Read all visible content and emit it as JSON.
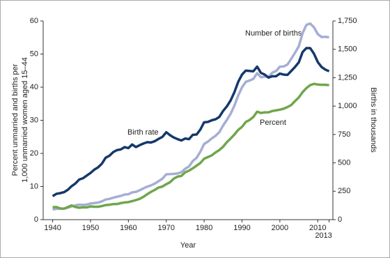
{
  "chart_data": {
    "type": "line",
    "x": [
      1940,
      1941,
      1942,
      1943,
      1944,
      1945,
      1946,
      1947,
      1948,
      1949,
      1950,
      1951,
      1952,
      1953,
      1954,
      1955,
      1956,
      1957,
      1958,
      1959,
      1960,
      1961,
      1962,
      1963,
      1964,
      1965,
      1966,
      1967,
      1968,
      1969,
      1970,
      1971,
      1972,
      1973,
      1974,
      1975,
      1976,
      1977,
      1978,
      1979,
      1980,
      1981,
      1982,
      1983,
      1984,
      1985,
      1986,
      1987,
      1988,
      1989,
      1990,
      1991,
      1992,
      1993,
      1994,
      1995,
      1996,
      1997,
      1998,
      1999,
      2000,
      2001,
      2002,
      2003,
      2004,
      2005,
      2006,
      2007,
      2008,
      2009,
      2010,
      2011,
      2012,
      2013
    ],
    "series": [
      {
        "name": "Number of births",
        "color": "#a5aed3",
        "axis": "y2",
        "values": [
          89,
          96,
          96,
          98,
          105,
          117,
          125,
          132,
          130,
          133,
          142,
          146,
          150,
          161,
          177,
          183,
          193,
          202,
          209,
          221,
          224,
          240,
          245,
          259,
          276,
          291,
          302,
          318,
          339,
          361,
          399,
          401,
          403,
          407,
          418,
          448,
          468,
          516,
          544,
          598,
          666,
          687,
          715,
          738,
          770,
          828,
          878,
          933,
          1005,
          1094,
          1165,
          1214,
          1225,
          1240,
          1290,
          1254,
          1260,
          1257,
          1294,
          1309,
          1347,
          1349,
          1366,
          1416,
          1470,
          1527,
          1642,
          1715,
          1727,
          1694,
          1634,
          1608,
          1610,
          1606
        ]
      },
      {
        "name": "Percent",
        "color": "#6fa64b",
        "values": [
          3.8,
          3.8,
          3.4,
          3.3,
          3.8,
          4.3,
          3.8,
          3.6,
          3.7,
          3.7,
          4.0,
          3.9,
          3.9,
          4.1,
          4.4,
          4.5,
          4.7,
          4.7,
          5.0,
          5.2,
          5.3,
          5.6,
          5.9,
          6.3,
          6.9,
          7.7,
          8.4,
          9.0,
          9.7,
          10.0,
          10.7,
          11.3,
          12.4,
          13.0,
          13.2,
          14.3,
          14.8,
          15.5,
          16.3,
          17.1,
          18.4,
          18.9,
          19.4,
          20.3,
          21.0,
          22.0,
          23.4,
          24.5,
          25.7,
          27.1,
          28.0,
          29.5,
          30.1,
          31.0,
          32.6,
          32.2,
          32.4,
          32.4,
          32.8,
          33.0,
          33.2,
          33.5,
          34.0,
          34.6,
          35.8,
          36.9,
          38.5,
          39.7,
          40.6,
          41.0,
          40.8,
          40.7,
          40.7,
          40.6
        ]
      },
      {
        "name": "Birth rate",
        "color": "#15386a",
        "values": [
          7.1,
          7.8,
          8.0,
          8.3,
          9.0,
          10.1,
          10.9,
          12.1,
          12.5,
          13.3,
          14.1,
          15.1,
          15.8,
          16.9,
          18.7,
          19.3,
          20.4,
          21.0,
          21.2,
          21.9,
          21.6,
          22.7,
          21.9,
          22.5,
          23.0,
          23.4,
          23.3,
          23.7,
          24.4,
          25.0,
          26.4,
          25.5,
          24.8,
          24.3,
          23.9,
          24.5,
          24.3,
          25.6,
          25.7,
          27.2,
          29.4,
          29.5,
          30.0,
          30.3,
          31.0,
          32.8,
          34.2,
          36.0,
          38.5,
          41.6,
          43.8,
          45.0,
          44.9,
          44.8,
          46.2,
          44.3,
          43.8,
          42.9,
          43.3,
          43.3,
          44.1,
          43.8,
          43.7,
          44.9,
          46.1,
          47.5,
          50.6,
          51.8,
          51.8,
          50.1,
          47.6,
          46.1,
          45.3,
          44.8
        ]
      }
    ],
    "xlim": [
      1937.5,
      2014
    ],
    "xticks": [
      1940,
      1950,
      1960,
      1970,
      1980,
      1990,
      2000,
      2010,
      2013
    ],
    "ylim": [
      0,
      60
    ],
    "yticks": [
      0,
      10,
      20,
      30,
      40,
      50,
      60
    ],
    "y2lim": [
      0,
      1750
    ],
    "y2ticks": [
      0,
      250,
      500,
      750,
      {
        "value": 1000,
        "label": "1,000"
      },
      {
        "value": 1250,
        "label": "1,250"
      },
      {
        "value": 1500,
        "label": "1,500"
      },
      {
        "value": 1750,
        "label": "1,750"
      }
    ],
    "x_label": "Year",
    "y_label": [
      "Percent unmarried and births per",
      "1,000 unmarried women aged 15–44"
    ],
    "y2_label": "Births in thousands",
    "annotations": [
      "Number of births",
      "Birth rate",
      "Percent"
    ],
    "grid": false
  }
}
